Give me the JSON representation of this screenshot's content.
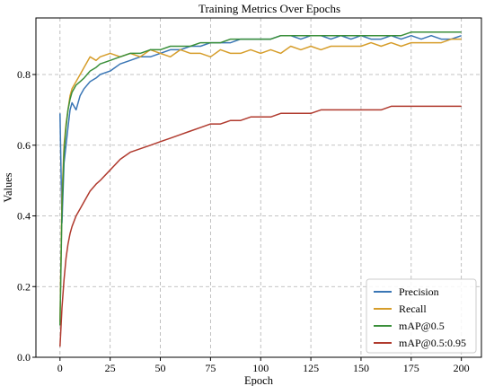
{
  "chart_data": {
    "type": "line",
    "title": "Training Metrics Over Epochs",
    "xlabel": "Epoch",
    "ylabel": "Values",
    "xlim": [
      -12,
      210
    ],
    "ylim": [
      0.0,
      0.96
    ],
    "xticks": [
      0,
      25,
      50,
      75,
      100,
      125,
      150,
      175,
      200
    ],
    "yticks": [
      0.0,
      0.2,
      0.4,
      0.6,
      0.8
    ],
    "grid": true,
    "legend_position": "bottom-right",
    "x": [
      0,
      1,
      2,
      3,
      4,
      5,
      6,
      8,
      10,
      12,
      15,
      18,
      20,
      25,
      30,
      35,
      40,
      45,
      50,
      55,
      60,
      65,
      70,
      75,
      80,
      85,
      90,
      95,
      100,
      105,
      110,
      115,
      120,
      125,
      130,
      135,
      140,
      145,
      150,
      155,
      160,
      165,
      170,
      175,
      180,
      185,
      190,
      195,
      200
    ],
    "series": [
      {
        "name": "Precision",
        "color": "#3a76b5",
        "values": [
          0.69,
          0.38,
          0.55,
          0.6,
          0.65,
          0.7,
          0.72,
          0.7,
          0.74,
          0.76,
          0.78,
          0.79,
          0.8,
          0.81,
          0.83,
          0.84,
          0.85,
          0.85,
          0.86,
          0.87,
          0.87,
          0.88,
          0.88,
          0.89,
          0.89,
          0.89,
          0.9,
          0.9,
          0.9,
          0.9,
          0.91,
          0.91,
          0.9,
          0.91,
          0.91,
          0.9,
          0.91,
          0.9,
          0.91,
          0.9,
          0.9,
          0.91,
          0.9,
          0.91,
          0.9,
          0.91,
          0.9,
          0.9,
          0.91
        ]
      },
      {
        "name": "Recall",
        "color": "#d69d2a",
        "values": [
          0.1,
          0.45,
          0.6,
          0.66,
          0.7,
          0.74,
          0.76,
          0.78,
          0.8,
          0.82,
          0.85,
          0.84,
          0.85,
          0.86,
          0.85,
          0.86,
          0.85,
          0.87,
          0.86,
          0.85,
          0.87,
          0.86,
          0.86,
          0.85,
          0.87,
          0.86,
          0.86,
          0.87,
          0.86,
          0.87,
          0.86,
          0.88,
          0.87,
          0.88,
          0.87,
          0.88,
          0.88,
          0.88,
          0.88,
          0.89,
          0.88,
          0.89,
          0.88,
          0.89,
          0.89,
          0.89,
          0.89,
          0.9,
          0.9
        ]
      },
      {
        "name": "mAP@0.5",
        "color": "#3a8f3a",
        "values": [
          0.09,
          0.42,
          0.58,
          0.65,
          0.7,
          0.73,
          0.75,
          0.77,
          0.78,
          0.79,
          0.81,
          0.82,
          0.83,
          0.84,
          0.85,
          0.86,
          0.86,
          0.87,
          0.87,
          0.88,
          0.88,
          0.88,
          0.89,
          0.89,
          0.89,
          0.9,
          0.9,
          0.9,
          0.9,
          0.9,
          0.91,
          0.91,
          0.91,
          0.91,
          0.91,
          0.91,
          0.91,
          0.91,
          0.91,
          0.91,
          0.91,
          0.91,
          0.91,
          0.92,
          0.92,
          0.92,
          0.92,
          0.92,
          0.92
        ]
      },
      {
        "name": "mAP@0.5:0.95",
        "color": "#b03a2e",
        "values": [
          0.03,
          0.14,
          0.22,
          0.28,
          0.32,
          0.35,
          0.37,
          0.4,
          0.42,
          0.44,
          0.47,
          0.49,
          0.5,
          0.53,
          0.56,
          0.58,
          0.59,
          0.6,
          0.61,
          0.62,
          0.63,
          0.64,
          0.65,
          0.66,
          0.66,
          0.67,
          0.67,
          0.68,
          0.68,
          0.68,
          0.69,
          0.69,
          0.69,
          0.69,
          0.7,
          0.7,
          0.7,
          0.7,
          0.7,
          0.7,
          0.7,
          0.71,
          0.71,
          0.71,
          0.71,
          0.71,
          0.71,
          0.71,
          0.71
        ]
      }
    ]
  }
}
